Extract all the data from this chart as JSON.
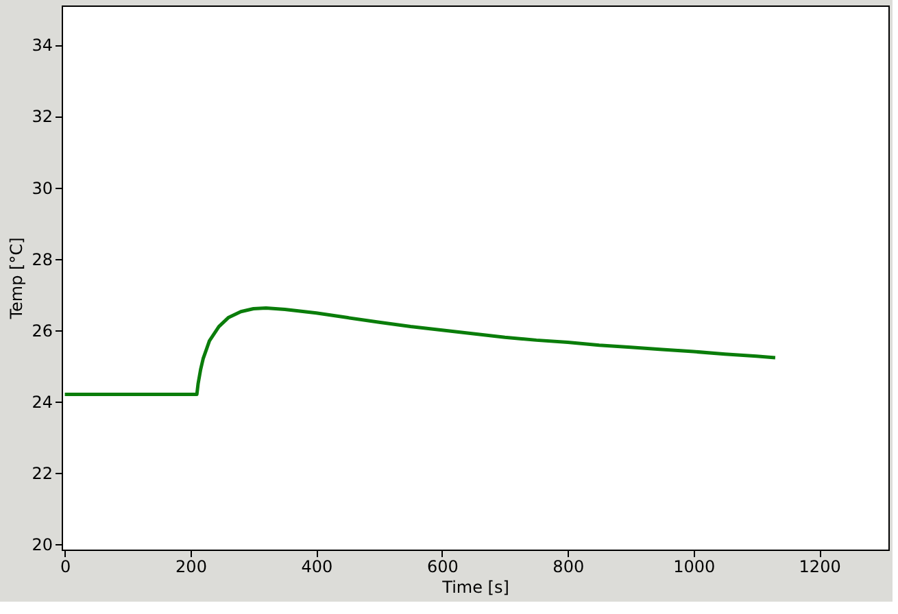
{
  "chart_data": {
    "type": "line",
    "xlabel": "Time [s]",
    "ylabel": "Temp [°C]",
    "xlim": [
      -5,
      1310
    ],
    "ylim": [
      19.85,
      35.1
    ],
    "xticks": [
      0,
      200,
      400,
      600,
      800,
      1000,
      1200
    ],
    "yticks": [
      20,
      22,
      24,
      26,
      28,
      30,
      32,
      34
    ],
    "marker": "none",
    "line_style": "solid",
    "series": [
      {
        "color": "#0a7d0a",
        "x": [
          0,
          100,
          210,
          212,
          216,
          220,
          230,
          245,
          260,
          280,
          300,
          320,
          350,
          400,
          450,
          500,
          550,
          600,
          650,
          700,
          750,
          800,
          850,
          900,
          950,
          1000,
          1050,
          1100,
          1130
        ],
        "values": [
          24.2,
          24.2,
          24.2,
          24.5,
          24.9,
          25.2,
          25.7,
          26.1,
          26.35,
          26.52,
          26.6,
          26.62,
          26.58,
          26.48,
          26.35,
          26.22,
          26.1,
          26.0,
          25.9,
          25.8,
          25.72,
          25.66,
          25.58,
          25.52,
          25.46,
          25.4,
          25.33,
          25.27,
          25.23
        ]
      }
    ]
  }
}
